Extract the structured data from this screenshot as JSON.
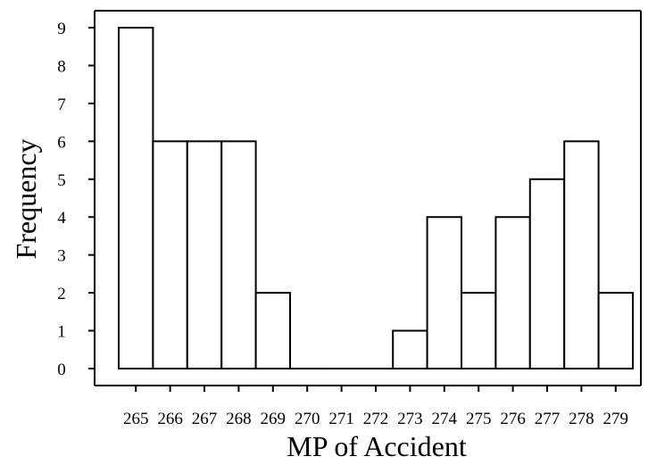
{
  "chart_data": {
    "type": "bar",
    "title": "",
    "xlabel": "MP of Accident",
    "ylabel": "Frequency",
    "categories": [
      "265",
      "266",
      "267",
      "268",
      "269",
      "270",
      "271",
      "272",
      "273",
      "274",
      "275",
      "276",
      "277",
      "278",
      "279"
    ],
    "values": [
      9,
      6,
      6,
      6,
      2,
      0,
      0,
      0,
      1,
      4,
      2,
      4,
      5,
      6,
      2
    ],
    "y_ticks": [
      "0",
      "1",
      "2",
      "3",
      "4",
      "5",
      "6",
      "7",
      "8",
      "9"
    ],
    "ylim": [
      0,
      9
    ],
    "grid": false,
    "legend": "none",
    "colors": {
      "bar_fill": "#ffffff",
      "bar_stroke": "#000000",
      "axis": "#000000",
      "text": "#000000"
    }
  }
}
